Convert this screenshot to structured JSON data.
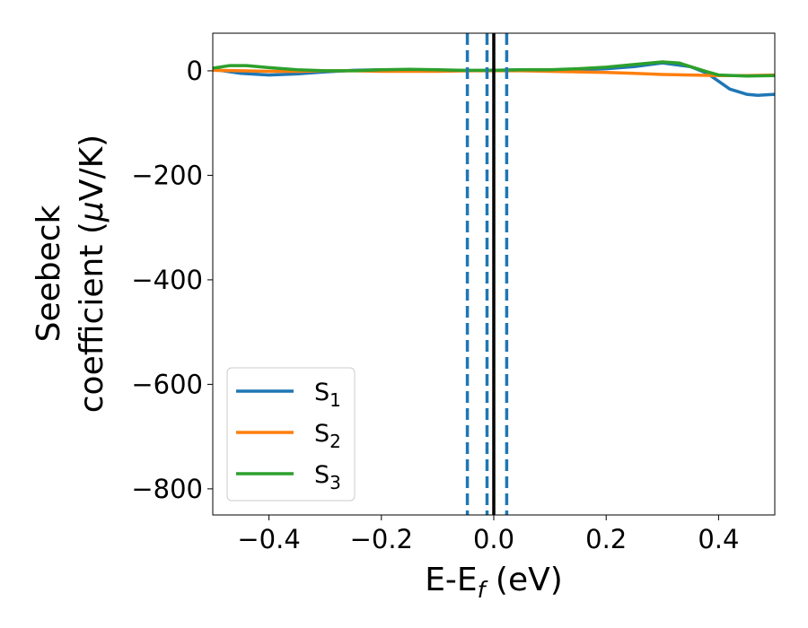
{
  "chart_data": {
    "type": "line",
    "xlabel": "E-E",
    "xlabel_sub": "f",
    "xlabel_unit": " (eV)",
    "ylabel_line1": "Seebeck",
    "ylabel_line2_pre": "coefficient  (",
    "ylabel_mu": "μ",
    "ylabel_line2_post": "V/K)",
    "xlim": [
      -0.5,
      0.5
    ],
    "ylim": [
      -850,
      72
    ],
    "xticks": [
      -0.4,
      -0.2,
      0.0,
      0.2,
      0.4
    ],
    "xtick_labels": [
      "−0.4",
      "−0.2",
      "0.0",
      "0.2",
      "0.4"
    ],
    "yticks": [
      0,
      -200,
      -400,
      -600,
      -800
    ],
    "ytick_labels": [
      "0",
      "−200",
      "−400",
      "−600",
      "−800"
    ],
    "grid": false,
    "legend_position": "lower-left",
    "vlines": [
      {
        "x": 0.0,
        "style": "solid",
        "color": "#000000"
      },
      {
        "x": -0.047,
        "style": "dashed",
        "color": "#1f77b4"
      },
      {
        "x": -0.012,
        "style": "dashed",
        "color": "#1f77b4"
      },
      {
        "x": 0.023,
        "style": "dashed",
        "color": "#1f77b4"
      }
    ],
    "series": [
      {
        "name": "S",
        "sub": "1",
        "color": "#1f77b4",
        "x": [
          -0.5,
          -0.45,
          -0.4,
          -0.35,
          -0.3,
          -0.25,
          -0.2,
          -0.15,
          -0.1,
          -0.05,
          0.0,
          0.05,
          0.1,
          0.15,
          0.2,
          0.25,
          0.3,
          0.35,
          0.38,
          0.4,
          0.42,
          0.45,
          0.47,
          0.5
        ],
        "y": [
          3,
          -5,
          -8,
          -6,
          -2,
          1,
          2,
          2,
          1,
          0,
          1,
          2,
          2,
          2,
          4,
          8,
          15,
          8,
          -5,
          -20,
          -35,
          -45,
          -47,
          -45
        ]
      },
      {
        "name": "S",
        "sub": "2",
        "color": "#ff7f0e",
        "x": [
          -0.5,
          -0.45,
          -0.4,
          -0.35,
          -0.3,
          -0.25,
          -0.2,
          -0.15,
          -0.1,
          -0.05,
          0.0,
          0.05,
          0.1,
          0.15,
          0.2,
          0.25,
          0.3,
          0.35,
          0.4,
          0.45,
          0.5
        ],
        "y": [
          1,
          0,
          -1,
          -1,
          0,
          0,
          -1,
          -1,
          -1,
          0,
          0,
          0,
          -1,
          -2,
          -3,
          -5,
          -7,
          -8,
          -9,
          -9,
          -8
        ]
      },
      {
        "name": "S",
        "sub": "3",
        "color": "#2ca02c",
        "x": [
          -0.5,
          -0.47,
          -0.44,
          -0.4,
          -0.35,
          -0.3,
          -0.25,
          -0.2,
          -0.15,
          -0.1,
          -0.05,
          0.0,
          0.05,
          0.1,
          0.15,
          0.2,
          0.25,
          0.3,
          0.33,
          0.35,
          0.38,
          0.4,
          0.45,
          0.5
        ],
        "y": [
          5,
          10,
          10,
          6,
          2,
          0,
          0,
          2,
          3,
          2,
          1,
          1,
          2,
          2,
          4,
          7,
          12,
          17,
          15,
          8,
          -2,
          -8,
          -10,
          -9
        ]
      }
    ]
  }
}
